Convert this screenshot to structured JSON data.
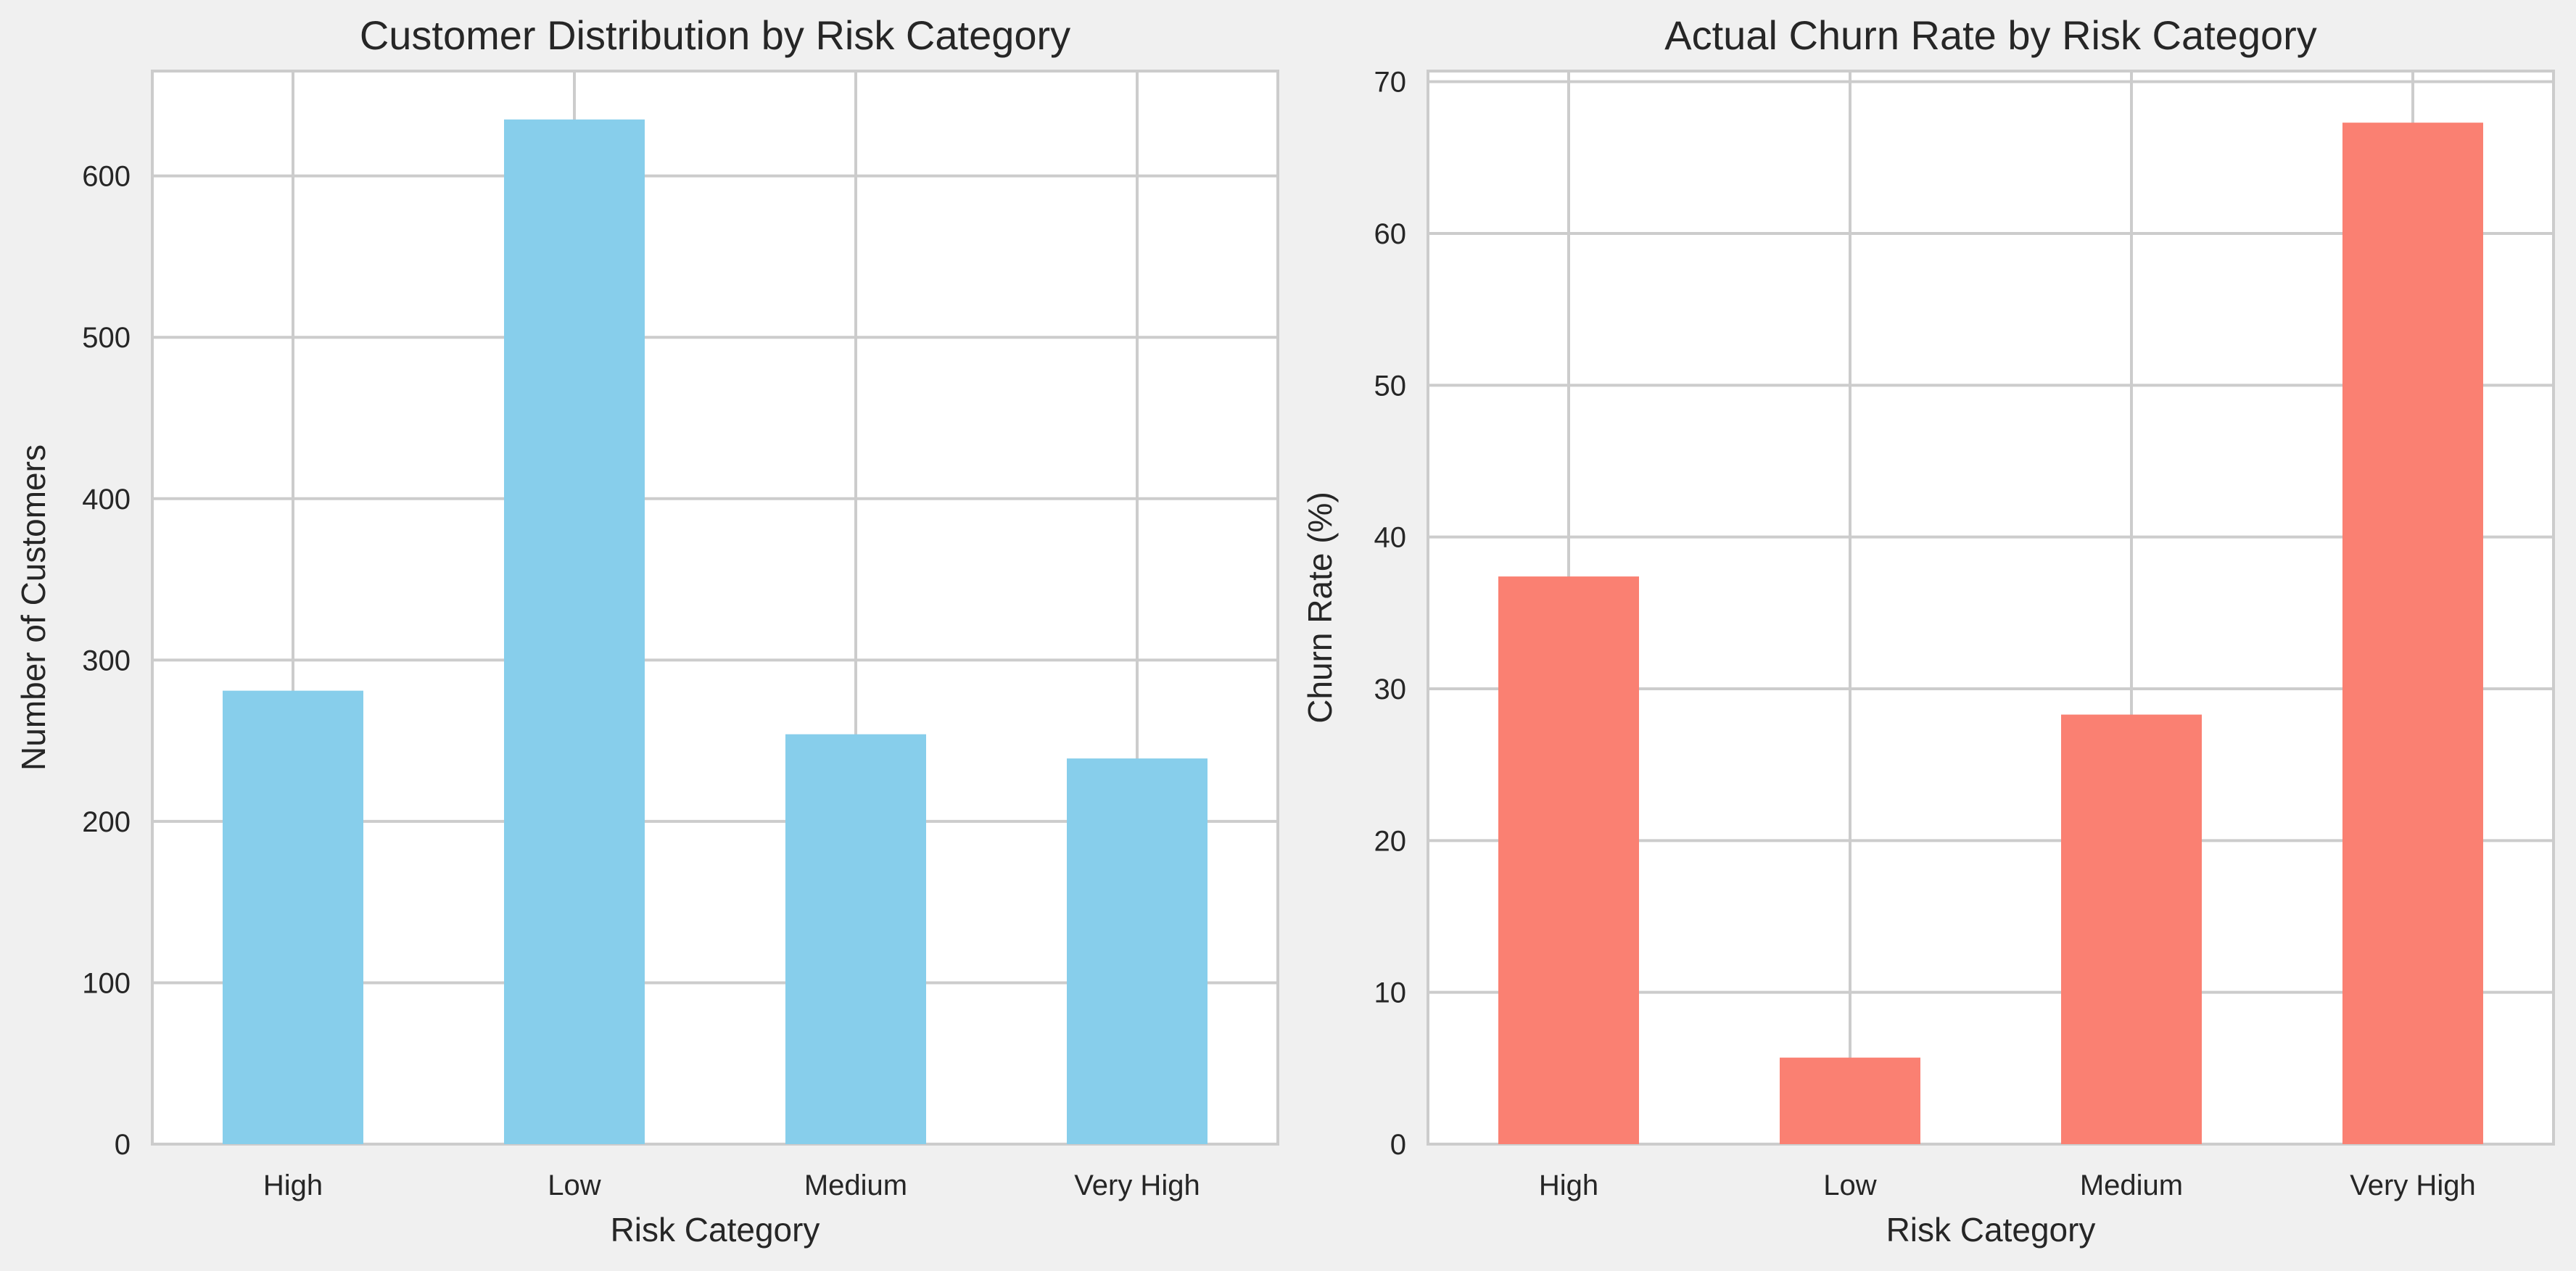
{
  "figure": {
    "background": "#f0f0f0",
    "panel_background": "#ffffff",
    "grid_color": "#cccccc"
  },
  "chart_data": [
    {
      "type": "bar",
      "title": "Customer Distribution by Risk Category",
      "xlabel": "Risk Category",
      "ylabel": "Number of Customers",
      "categories": [
        "High",
        "Low",
        "Medium",
        "Very High"
      ],
      "values": [
        281,
        635,
        254,
        239
      ],
      "ylim": [
        0,
        665
      ],
      "yticks": [
        0,
        100,
        200,
        300,
        400,
        500,
        600
      ],
      "color": "#87ceeb",
      "grid": true,
      "legend": "none"
    },
    {
      "type": "bar",
      "title": "Actual Churn Rate by Risk Category",
      "xlabel": "Risk Category",
      "ylabel": "Churn Rate (%)",
      "categories": [
        "High",
        "Low",
        "Medium",
        "Very High"
      ],
      "values": [
        37.4,
        5.7,
        28.3,
        67.3
      ],
      "ylim": [
        0,
        70.7
      ],
      "yticks": [
        0,
        10,
        20,
        30,
        40,
        50,
        60,
        70
      ],
      "color": "#fa8072",
      "grid": true,
      "legend": "none"
    }
  ]
}
